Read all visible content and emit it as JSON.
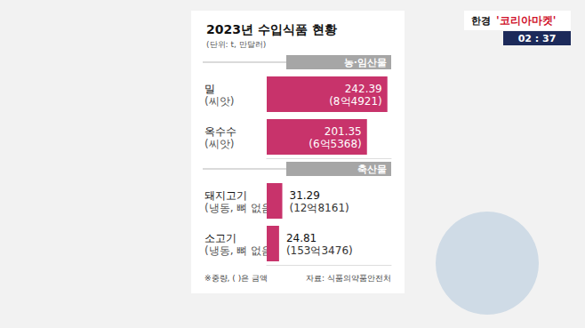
{
  "chart_data": {
    "type": "bar",
    "orientation": "horizontal",
    "title": "2023년 수입식품 현황",
    "subtitle": "(단위: t, 만달러)",
    "categories": [
      "밀",
      "옥수수",
      "돼지고기",
      "소고기"
    ],
    "category_notes": [
      "(씨앗)",
      "(씨앗)",
      "(냉동, 뼈 없음)",
      "(냉동, 뼈 없음)"
    ],
    "groups": [
      "농·임산물",
      "농·임산물",
      "축산물",
      "축산물"
    ],
    "values": [
      242.39,
      201.35,
      31.29,
      24.81
    ],
    "amounts": [
      "(8억4921)",
      "(6억5368)",
      "(12억8161)",
      "(153억3476)"
    ],
    "color": "#c8336b",
    "xlim": [
      0,
      250
    ],
    "tick_labels": "y",
    "data_labels": true,
    "grid": false,
    "footnote": "※중량, ( )은 금액",
    "source": "자료: 식품의약품안전처"
  },
  "overlay": {
    "channel_brand": "한경",
    "channel": "'코리아마켓'",
    "time": "02 : 37"
  }
}
